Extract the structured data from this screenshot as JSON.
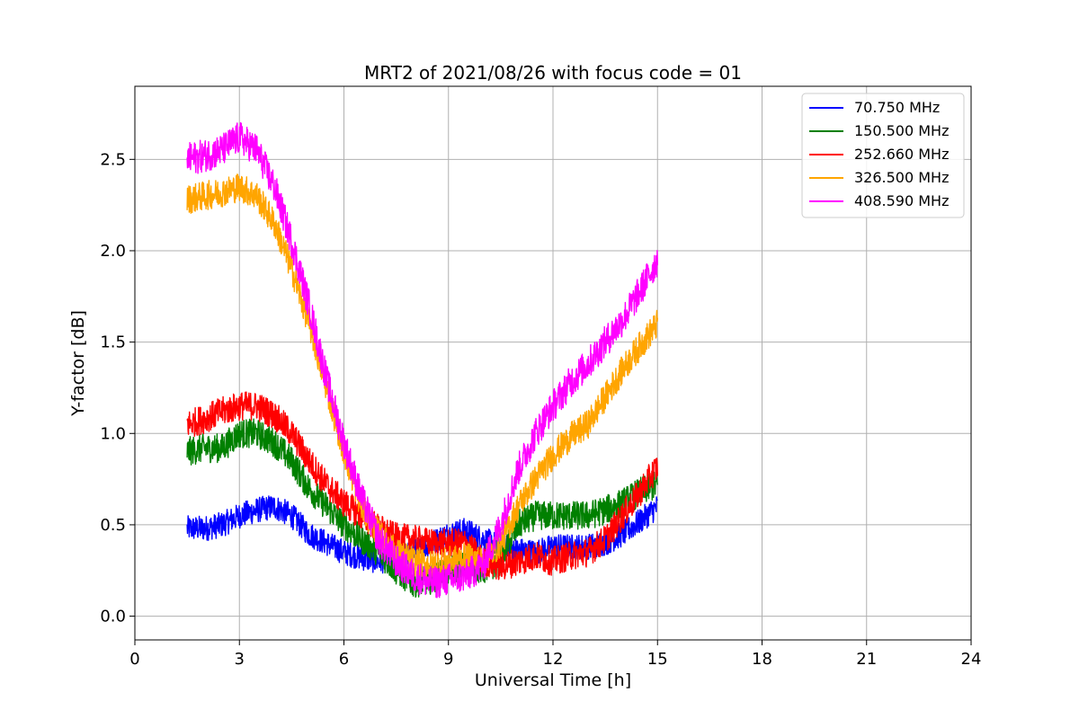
{
  "chart_data": {
    "type": "line",
    "title": "MRT2 of 2021/08/26 with focus code = 01",
    "xlabel": "Universal Time [h]",
    "ylabel": "Y-factor [dB]",
    "xlim": [
      0,
      24
    ],
    "ylim": [
      -0.13,
      2.9
    ],
    "xticks": [
      0,
      3,
      6,
      9,
      12,
      15,
      18,
      21,
      24
    ],
    "xtick_labels": [
      "0",
      "3",
      "6",
      "9",
      "12",
      "15",
      "18",
      "21",
      "24"
    ],
    "yticks": [
      0.0,
      0.5,
      1.0,
      1.5,
      2.0,
      2.5
    ],
    "ytick_labels": [
      "0.0",
      "0.5",
      "1.0",
      "1.5",
      "2.0",
      "2.5"
    ],
    "grid": true,
    "legend_position": "top-right",
    "series": [
      {
        "name": " 70.750 MHz",
        "color": "#0000ff",
        "x": [
          1.5,
          2.0,
          2.5,
          3.0,
          3.5,
          4.0,
          4.5,
          5.0,
          5.5,
          6.0,
          6.5,
          7.0,
          7.5,
          8.0,
          8.5,
          9.0,
          9.5,
          10.0,
          10.5,
          11.0,
          11.5,
          12.0,
          12.5,
          13.0,
          13.5,
          14.0,
          14.5,
          15.0
        ],
        "y": [
          0.48,
          0.48,
          0.5,
          0.55,
          0.58,
          0.6,
          0.55,
          0.45,
          0.4,
          0.35,
          0.32,
          0.3,
          0.32,
          0.35,
          0.4,
          0.45,
          0.47,
          0.42,
          0.38,
          0.36,
          0.35,
          0.38,
          0.38,
          0.38,
          0.4,
          0.45,
          0.52,
          0.6
        ],
        "noise": 0.07
      },
      {
        "name": "150.500 MHz",
        "color": "#008000",
        "x": [
          1.5,
          2.0,
          2.5,
          3.0,
          3.5,
          4.0,
          4.5,
          5.0,
          5.5,
          6.0,
          6.5,
          7.0,
          7.5,
          8.0,
          8.5,
          9.0,
          9.5,
          10.0,
          10.5,
          11.0,
          11.5,
          12.0,
          12.5,
          13.0,
          13.5,
          14.0,
          14.5,
          15.0
        ],
        "y": [
          0.9,
          0.92,
          0.92,
          1.0,
          1.0,
          0.95,
          0.85,
          0.7,
          0.6,
          0.5,
          0.42,
          0.35,
          0.25,
          0.18,
          0.2,
          0.25,
          0.28,
          0.25,
          0.3,
          0.5,
          0.55,
          0.55,
          0.55,
          0.55,
          0.58,
          0.62,
          0.68,
          0.72
        ],
        "noise": 0.08
      },
      {
        "name": "252.660 MHz",
        "color": "#ff0000",
        "x": [
          1.5,
          2.0,
          2.5,
          3.0,
          3.5,
          4.0,
          4.5,
          5.0,
          5.5,
          6.0,
          6.5,
          7.0,
          7.5,
          8.0,
          8.5,
          9.0,
          9.5,
          10.0,
          10.5,
          11.0,
          11.5,
          12.0,
          12.5,
          13.0,
          13.5,
          14.0,
          14.5,
          15.0
        ],
        "y": [
          1.05,
          1.08,
          1.12,
          1.15,
          1.15,
          1.1,
          1.0,
          0.85,
          0.72,
          0.62,
          0.55,
          0.48,
          0.43,
          0.42,
          0.4,
          0.4,
          0.4,
          0.3,
          0.27,
          0.3,
          0.33,
          0.3,
          0.33,
          0.35,
          0.42,
          0.55,
          0.68,
          0.82
        ],
        "noise": 0.08
      },
      {
        "name": "326.500 MHz",
        "color": "#ffa500",
        "x": [
          1.5,
          2.0,
          2.5,
          3.0,
          3.5,
          4.0,
          4.5,
          5.0,
          5.5,
          6.0,
          6.5,
          7.0,
          7.5,
          8.0,
          8.5,
          9.0,
          9.5,
          10.0,
          10.5,
          11.0,
          11.5,
          12.0,
          12.5,
          13.0,
          13.5,
          14.0,
          14.5,
          15.0
        ],
        "y": [
          2.28,
          2.3,
          2.32,
          2.35,
          2.3,
          2.15,
          1.9,
          1.6,
          1.25,
          0.9,
          0.6,
          0.45,
          0.35,
          0.3,
          0.28,
          0.3,
          0.32,
          0.3,
          0.4,
          0.6,
          0.75,
          0.88,
          0.98,
          1.05,
          1.2,
          1.35,
          1.48,
          1.6
        ],
        "noise": 0.08
      },
      {
        "name": "408.590 MHz",
        "color": "#ff00ff",
        "x": [
          1.5,
          2.0,
          2.5,
          3.0,
          3.5,
          4.0,
          4.5,
          5.0,
          5.5,
          6.0,
          6.5,
          7.0,
          7.5,
          8.0,
          8.5,
          9.0,
          9.5,
          10.0,
          10.5,
          11.0,
          11.5,
          12.0,
          12.5,
          13.0,
          13.5,
          14.0,
          14.5,
          15.0
        ],
        "y": [
          2.5,
          2.52,
          2.55,
          2.62,
          2.55,
          2.35,
          2.05,
          1.7,
          1.3,
          0.95,
          0.65,
          0.42,
          0.3,
          0.22,
          0.18,
          0.2,
          0.22,
          0.28,
          0.5,
          0.8,
          1.0,
          1.15,
          1.28,
          1.38,
          1.5,
          1.62,
          1.78,
          1.95
        ],
        "noise": 0.09
      }
    ]
  }
}
